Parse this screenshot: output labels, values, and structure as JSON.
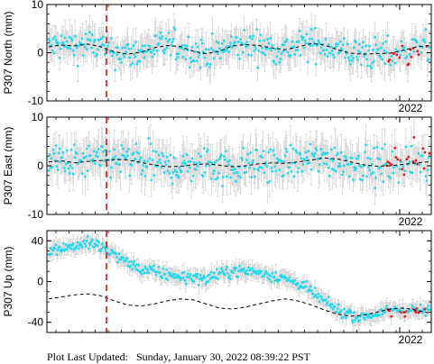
{
  "chart_data": [
    {
      "type": "scatter",
      "ylabel": "P307 North (mm)",
      "yticks": [
        -10,
        0,
        10
      ],
      "ylim": [
        -10,
        10
      ],
      "year_label": "2022",
      "series": [],
      "trend": [
        1.2,
        1.6,
        1.4,
        1.8,
        1.2,
        0.2,
        -0.3,
        0.1,
        1.0,
        1.5,
        1.3,
        0.3,
        -0.2,
        0.3,
        1.4,
        1.7,
        1.5,
        1.0,
        0.6,
        1.2,
        1.9,
        1.6,
        0.6,
        -0.1,
        -0.3,
        -0.2,
        -0.1,
        0.5,
        1.2,
        1.5
      ],
      "blue_scatter": 2.3,
      "error": 2.8,
      "red_from": 0.885,
      "red_offset": -0.8
    },
    {
      "type": "scatter",
      "ylabel": "P307 East (mm)",
      "yticks": [
        -10,
        0,
        10
      ],
      "ylim": [
        -10,
        10
      ],
      "year_label": "2022",
      "trend": [
        0.8,
        1.0,
        0.6,
        0.9,
        1.1,
        1.3,
        1.2,
        0.7,
        0.2,
        -0.2,
        -0.1,
        0.2,
        0.4,
        0.1,
        -0.2,
        0.0,
        0.4,
        0.6,
        0.5,
        0.8,
        1.2,
        1.6,
        1.4,
        0.8,
        0.2,
        -0.1,
        0.0,
        0.3,
        0.6,
        0.8
      ],
      "blue_scatter": 2.6,
      "error": 3.2,
      "red_from": 0.885,
      "red_offset": 1.2
    },
    {
      "type": "scatter",
      "ylabel": "P307 Up (mm)",
      "yticks": [
        -40,
        0,
        40
      ],
      "ylim": [
        -50,
        50
      ],
      "year_label": "2022",
      "trend": [
        -17,
        -15,
        -13,
        -12,
        -14,
        -19,
        -23,
        -24,
        -22,
        -19,
        -17,
        -18,
        -22,
        -26,
        -27,
        -25,
        -22,
        -19,
        -17,
        -19,
        -23,
        -28,
        -32,
        -34,
        -33,
        -30,
        -27,
        -26,
        -28,
        -31
      ],
      "data_curve": [
        32,
        33,
        35,
        38,
        33,
        27,
        18,
        12,
        9,
        7,
        5,
        4,
        3,
        7,
        10,
        11,
        9,
        6,
        3,
        -2,
        -10,
        -20,
        -28,
        -33,
        -35,
        -32,
        -29,
        -28,
        -29,
        -28
      ],
      "blue_scatter": 4.0,
      "error": 7.0,
      "red_from": 0.885,
      "red_offset": 0.0
    }
  ],
  "footer": {
    "label": "Plot Last Updated:",
    "timestamp": "Sunday, January 30, 2022 08:39:22 PST"
  }
}
